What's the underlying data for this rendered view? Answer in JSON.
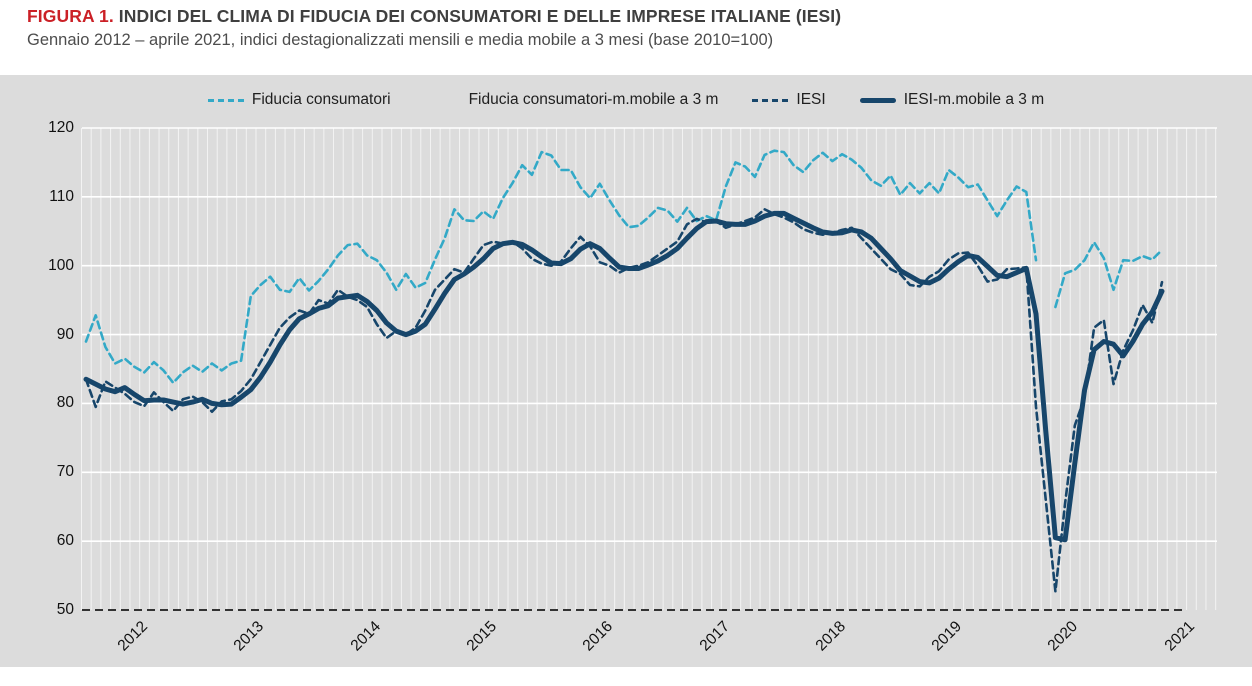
{
  "figure": {
    "label": "FIGURA 1.",
    "title": "INDICI DEL CLIMA DI FIDUCIA DEI CONSUMATORI E DELLE IMPRESE ITALIANE (IESI)",
    "subtitle": "Gennaio 2012 – aprile 2021, indici destagionalizzati mensili e media mobile a 3 mesi (base 2010=100)"
  },
  "colors": {
    "figure_label_red": "#CB2026",
    "title_gray": "#3F3F3F",
    "panel_background": "#DCDCDC",
    "gridline": "#FFFFFF",
    "consumer_blue": "#33A9C7",
    "iesi_navy": "#17466B",
    "axis_text": "#111111"
  },
  "legend": {
    "items": [
      {
        "label": "Fiducia consumatori",
        "swatch": "dashed-light"
      },
      {
        "label": "Fiducia consumatori-m.mobile a 3 m",
        "swatch": "blank"
      },
      {
        "label": "IESI",
        "swatch": "dashed-dark"
      },
      {
        "label": "IESI-m.mobile a 3 m",
        "swatch": "thick-dark"
      }
    ]
  },
  "chart_data": {
    "type": "line",
    "x_range": {
      "start": "2012-01",
      "end": "2021-04",
      "freq": "monthly",
      "n_points": 112
    },
    "x_tick_labels": [
      "2012",
      "2013",
      "2014",
      "2015",
      "2016",
      "2017",
      "2018",
      "2019",
      "2020",
      "2021"
    ],
    "y_axis": {
      "min": 50,
      "max": 120,
      "step": 10,
      "ticks": [
        120,
        110,
        100,
        90,
        80,
        70,
        60,
        50
      ]
    },
    "grid": "white minor monthly verticals and major horizontals on gray panel; dashed black baseline at y=50",
    "legend_position": "top-center",
    "note": "Valori stimati dal grafico; interruzione delle serie ad aprile 2020 (rilevazione sospesa). La voce di legenda 'Fiducia consumatori-m.mobile a 3 m' non ha linea visibile nel grafico.",
    "series": [
      {
        "name": "Fiducia consumatori",
        "style": "dashed",
        "color": "#33A9C7",
        "width": 2.6,
        "gap_at_null": true,
        "values": [
          89.0,
          92.8,
          88.2,
          85.8,
          86.5,
          85.3,
          84.5,
          86.0,
          84.8,
          83.0,
          84.5,
          85.5,
          84.6,
          85.8,
          84.8,
          85.8,
          86.2,
          95.6,
          97.2,
          98.4,
          96.5,
          96.2,
          98.2,
          96.4,
          97.8,
          99.5,
          101.5,
          103.0,
          103.2,
          101.5,
          100.8,
          99.0,
          96.5,
          98.8,
          96.8,
          97.5,
          100.9,
          104.0,
          108.2,
          106.6,
          106.5,
          107.9,
          106.8,
          109.8,
          112.0,
          114.6,
          113.2,
          116.5,
          116.0,
          113.9,
          113.9,
          111.4,
          109.8,
          111.9,
          109.5,
          107.3,
          105.6,
          105.8,
          107.0,
          108.4,
          108.0,
          106.4,
          108.4,
          106.5,
          107.2,
          106.6,
          111.5,
          115.0,
          114.4,
          112.9,
          116.1,
          116.7,
          116.5,
          114.6,
          113.6,
          115.3,
          116.4,
          115.2,
          116.2,
          115.4,
          114.2,
          112.4,
          111.6,
          113.1,
          110.3,
          112.0,
          110.5,
          112.0,
          110.5,
          113.9,
          112.8,
          111.4,
          111.8,
          109.5,
          107.2,
          109.5,
          111.5,
          110.7,
          100.8,
          null,
          94.0,
          98.9,
          99.4,
          100.8,
          103.4,
          101.1,
          96.5,
          100.8,
          100.7,
          101.4,
          100.9,
          102.3
        ]
      },
      {
        "name": "IESI",
        "style": "dashed",
        "color": "#17466B",
        "width": 2.6,
        "gap_at_null": false,
        "values": [
          83.5,
          79.5,
          83.2,
          82.3,
          81.4,
          80.2,
          79.6,
          81.6,
          80.2,
          78.9,
          80.6,
          81.0,
          80.2,
          78.8,
          80.3,
          80.6,
          81.8,
          83.5,
          86.0,
          88.5,
          91.0,
          92.5,
          93.5,
          93.0,
          95.0,
          94.5,
          96.5,
          95.5,
          95.0,
          94.0,
          91.5,
          89.5,
          90.5,
          90.0,
          91.0,
          93.5,
          96.5,
          98.0,
          99.5,
          99.0,
          101.0,
          103.0,
          103.5,
          103.2,
          103.5,
          102.5,
          101.0,
          100.3,
          100.0,
          100.6,
          102.5,
          104.2,
          102.8,
          100.5,
          100.0,
          99.0,
          99.7,
          100.0,
          100.5,
          101.5,
          102.5,
          103.5,
          106.0,
          106.8,
          106.3,
          106.5,
          105.5,
          106.0,
          106.5,
          107.0,
          108.2,
          107.5,
          107.0,
          106.3,
          105.3,
          104.8,
          104.5,
          104.8,
          105.2,
          105.5,
          104.0,
          102.5,
          101.0,
          99.5,
          98.8,
          97.2,
          97.0,
          98.4,
          99.2,
          100.9,
          101.8,
          101.9,
          100.0,
          97.7,
          98.0,
          99.5,
          99.6,
          99.8,
          79.5,
          null,
          52.7,
          65.5,
          76.8,
          80.8,
          91.0,
          92.1,
          82.8,
          87.7,
          90.6,
          94.3,
          91.7,
          97.6
        ]
      },
      {
        "name": "IESI-m.mobile a 3 m",
        "style": "solid",
        "color": "#17466B",
        "width": 5,
        "gap_at_null": false,
        "values": [
          83.5,
          82.8,
          82.1,
          81.7,
          82.3,
          81.3,
          80.4,
          80.5,
          80.5,
          80.2,
          79.9,
          80.2,
          80.6,
          80.0,
          79.8,
          79.9,
          80.9,
          82.0,
          83.8,
          86.0,
          88.5,
          90.7,
          92.3,
          93.0,
          93.8,
          94.2,
          95.3,
          95.5,
          95.7,
          94.8,
          93.5,
          91.7,
          90.5,
          90.0,
          90.5,
          91.5,
          93.7,
          96.0,
          98.0,
          98.8,
          99.8,
          101.0,
          102.5,
          103.2,
          103.4,
          103.1,
          102.3,
          101.3,
          100.4,
          100.3,
          101.0,
          102.4,
          103.2,
          102.5,
          101.1,
          99.8,
          99.6,
          99.6,
          100.1,
          100.7,
          101.5,
          102.5,
          104.0,
          105.4,
          106.4,
          106.5,
          106.1,
          106.0,
          106.0,
          106.5,
          107.2,
          107.6,
          107.6,
          106.9,
          106.2,
          105.5,
          104.9,
          104.7,
          104.8,
          105.2,
          104.9,
          104.0,
          102.5,
          101.0,
          99.3,
          98.5,
          97.7,
          97.5,
          98.2,
          99.5,
          100.6,
          101.5,
          101.2,
          99.9,
          98.6,
          98.4,
          99.0,
          99.6,
          93.0,
          76.1,
          60.5,
          60.2,
          71.3,
          81.9,
          87.8,
          89.0,
          88.6,
          86.9,
          89.0,
          91.5,
          93.3,
          96.3
        ]
      }
    ]
  }
}
